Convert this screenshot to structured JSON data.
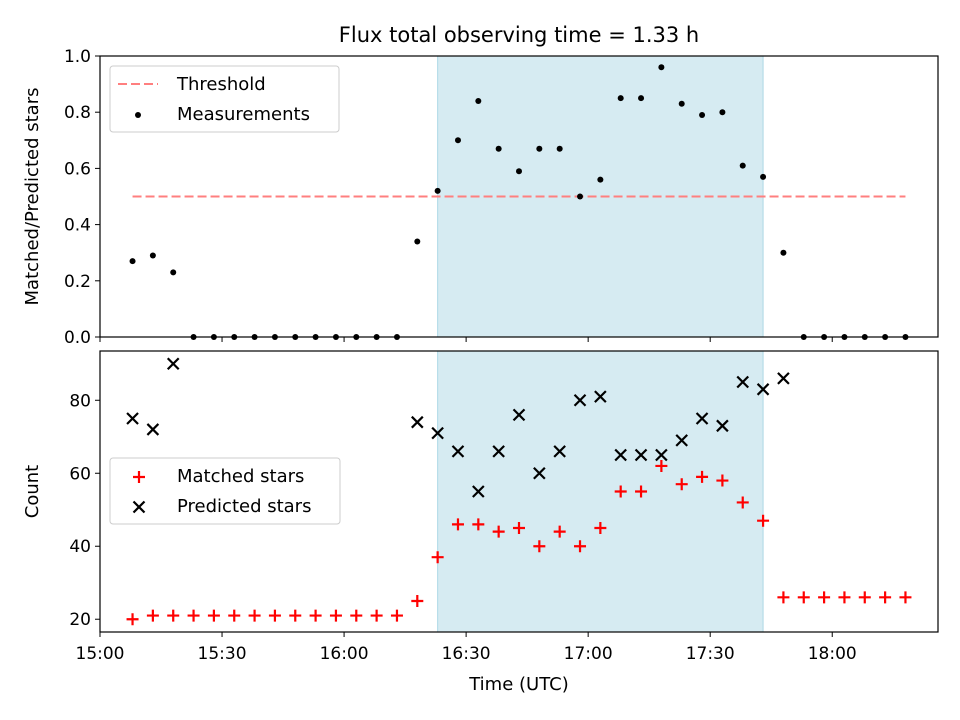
{
  "chart_data": [
    {
      "type": "scatter",
      "title": "Flux total observing time = 1.33 h",
      "xlabel": "",
      "ylabel": "Matched/Predicted stars",
      "xlim": [
        "15:00",
        "18:26"
      ],
      "ylim": [
        0,
        1.0
      ],
      "y_ticks": [
        "0.0",
        "0.2",
        "0.4",
        "0.6",
        "0.8",
        "1.0"
      ],
      "x_ticks": [
        "15:00",
        "15:30",
        "16:00",
        "16:30",
        "17:00",
        "17:30",
        "18:00"
      ],
      "shaded_region": {
        "start": "16:23",
        "end": "17:43",
        "color": "#add8e6"
      },
      "legend": {
        "location": "upper left",
        "entries": [
          "Threshold",
          "Measurements"
        ]
      },
      "threshold": {
        "name": "Threshold",
        "value": 0.5,
        "x_start": "15:08",
        "x_end": "18:18",
        "color": "#ff7f7f",
        "style": "dashed"
      },
      "series": [
        {
          "name": "Measurements",
          "color": "#000000",
          "marker": "dot",
          "x": [
            "15:08",
            "15:13",
            "15:18",
            "15:23",
            "15:28",
            "15:33",
            "15:38",
            "15:43",
            "15:48",
            "15:53",
            "15:58",
            "16:03",
            "16:08",
            "16:13",
            "16:18",
            "16:23",
            "16:28",
            "16:33",
            "16:38",
            "16:43",
            "16:48",
            "16:53",
            "16:58",
            "17:03",
            "17:08",
            "17:13",
            "17:18",
            "17:23",
            "17:28",
            "17:33",
            "17:38",
            "17:43",
            "17:48",
            "17:53",
            "17:58",
            "18:03",
            "18:08",
            "18:13",
            "18:18"
          ],
          "y": [
            0.27,
            0.29,
            0.23,
            0,
            0,
            0,
            0,
            0,
            0,
            0,
            0,
            0,
            0,
            0,
            0.34,
            0.52,
            0.7,
            0.84,
            0.67,
            0.59,
            0.67,
            0.67,
            0.5,
            0.56,
            0.85,
            0.85,
            0.96,
            0.83,
            0.79,
            0.8,
            0.61,
            0.57,
            0.3,
            0,
            0,
            0,
            0,
            0,
            0
          ]
        }
      ]
    },
    {
      "type": "scatter",
      "title": "",
      "xlabel": "Time (UTC)",
      "ylabel": "Count",
      "xlim": [
        "15:00",
        "18:26"
      ],
      "ylim": [
        16.5,
        93.5
      ],
      "y_ticks": [
        "20",
        "40",
        "60",
        "80"
      ],
      "x_ticks": [
        "15:00",
        "15:30",
        "16:00",
        "16:30",
        "17:00",
        "17:30",
        "18:00"
      ],
      "shaded_region": {
        "start": "16:23",
        "end": "17:43",
        "color": "#add8e6"
      },
      "legend": {
        "location": "center left",
        "entries": [
          "Matched stars",
          "Predicted stars"
        ]
      },
      "series": [
        {
          "name": "Matched stars",
          "color": "#ff0000",
          "marker": "plus",
          "x": [
            "15:08",
            "15:13",
            "15:18",
            "15:23",
            "15:28",
            "15:33",
            "15:38",
            "15:43",
            "15:48",
            "15:53",
            "15:58",
            "16:03",
            "16:08",
            "16:13",
            "16:18",
            "16:23",
            "16:28",
            "16:33",
            "16:38",
            "16:43",
            "16:48",
            "16:53",
            "16:58",
            "17:03",
            "17:08",
            "17:13",
            "17:18",
            "17:23",
            "17:28",
            "17:33",
            "17:38",
            "17:43",
            "17:48",
            "17:53",
            "17:58",
            "18:03",
            "18:08",
            "18:13",
            "18:18"
          ],
          "y": [
            20,
            21,
            21,
            21,
            21,
            21,
            21,
            21,
            21,
            21,
            21,
            21,
            21,
            21,
            25,
            37,
            46,
            46,
            44,
            45,
            40,
            44,
            40,
            45,
            55,
            55,
            62,
            57,
            59,
            58,
            52,
            47,
            26,
            26,
            26,
            26,
            26,
            26,
            26
          ]
        },
        {
          "name": "Predicted stars",
          "color": "#000000",
          "marker": "x",
          "x": [
            "15:08",
            "15:13",
            "15:18",
            "16:18",
            "16:23",
            "16:28",
            "16:33",
            "16:38",
            "16:43",
            "16:48",
            "16:53",
            "16:58",
            "17:03",
            "17:08",
            "17:13",
            "17:18",
            "17:23",
            "17:28",
            "17:33",
            "17:38",
            "17:43",
            "17:48"
          ],
          "y": [
            75,
            72,
            90,
            74,
            71,
            66,
            55,
            66,
            76,
            60,
            66,
            80,
            81,
            65,
            65,
            65,
            69,
            75,
            73,
            85,
            83,
            86
          ]
        }
      ]
    }
  ]
}
